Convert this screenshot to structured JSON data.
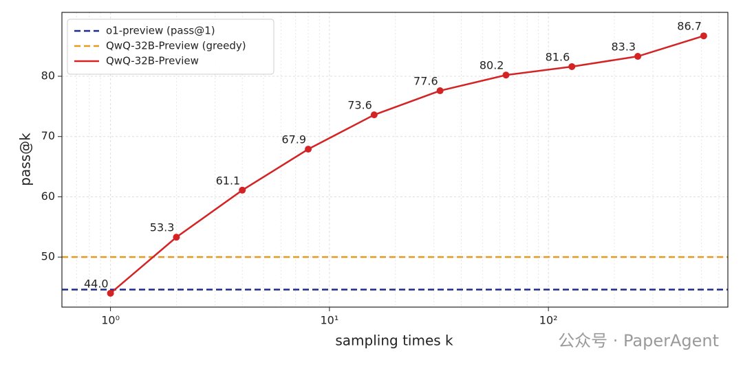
{
  "chart_data": {
    "type": "line",
    "x_label": "sampling times k",
    "y_label": "pass@k",
    "x_scale": "log",
    "x": [
      1,
      2,
      4,
      8,
      16,
      32,
      64,
      128,
      256,
      512
    ],
    "reference_lines": [
      {
        "name": "o1-preview (pass@1)",
        "color": "#1c2a8c",
        "value": 44.6
      },
      {
        "name": "QwQ-32B-Preview (greedy)",
        "color": "#e79a22",
        "value": 50
      }
    ],
    "series": [
      {
        "name": "QwQ-32B-Preview",
        "color": "#d42324",
        "values": [
          44,
          53.3,
          61.1,
          67.9,
          73.6,
          77.6,
          80.2,
          81.6,
          83.3,
          86.7
        ],
        "value_labels": [
          "44.0",
          "53.3",
          "61.1",
          "67.9",
          "73.6",
          "77.6",
          "80.2",
          "81.6",
          "83.3",
          "86.7"
        ]
      }
    ],
    "xlim": [
      0.6,
      660
    ],
    "ylim": [
      41.7,
      90.6
    ],
    "xticks": [
      {
        "value": 1,
        "label": "10⁰"
      },
      {
        "value": 10,
        "label": "10¹"
      },
      {
        "value": 100,
        "label": "10²"
      }
    ],
    "xminorticks": [
      0.7,
      0.8,
      0.9,
      2,
      3,
      4,
      5,
      6,
      7,
      8,
      9,
      20,
      30,
      40,
      50,
      60,
      70,
      80,
      90,
      200,
      300,
      400,
      500,
      600
    ],
    "yticks": [
      50,
      60,
      70,
      80
    ],
    "grid": true,
    "legend": "upper left",
    "watermark": "公众号 · PaperAgent"
  }
}
